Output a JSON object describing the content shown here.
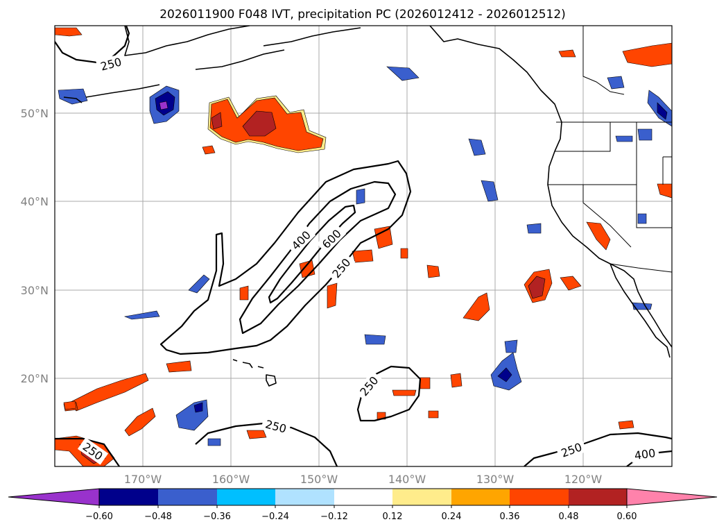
{
  "title": "2026011900 F048 IVT, precipitation PC (2026012412 - 2026012512)",
  "lat_labels": [
    "50°N",
    "40°N",
    "30°N",
    "20°N"
  ],
  "lon_labels": [
    "170°W",
    "160°W",
    "150°W",
    "140°W",
    "130°W",
    "120°W"
  ],
  "ivt_contour_labels": [
    "250",
    "400",
    "600",
    "250",
    "250",
    "250",
    "250",
    "250",
    "400"
  ],
  "colorbar": {
    "ticks": [
      "−0.60",
      "−0.48",
      "−0.36",
      "−0.24",
      "−0.12",
      "0.12",
      "0.24",
      "0.36",
      "0.48",
      "0.60"
    ],
    "colors": [
      "#9932cc",
      "#00008b",
      "#3a5fcd",
      "#00bfff",
      "#b0e2ff",
      "#ffffff",
      "#ffec8b",
      "#ffa500",
      "#ff4500",
      "#b22222",
      "#ff82ab"
    ]
  },
  "palette": {
    "orange_red": "#ff4500",
    "orange": "#ffa500",
    "yellow": "#ffec8b",
    "dark_red": "#b22222",
    "navy": "#00008b",
    "royal_blue": "#3a5fcd",
    "sky_blue": "#00bfff",
    "light_blue": "#b0e2ff",
    "purple": "#9932cc"
  }
}
